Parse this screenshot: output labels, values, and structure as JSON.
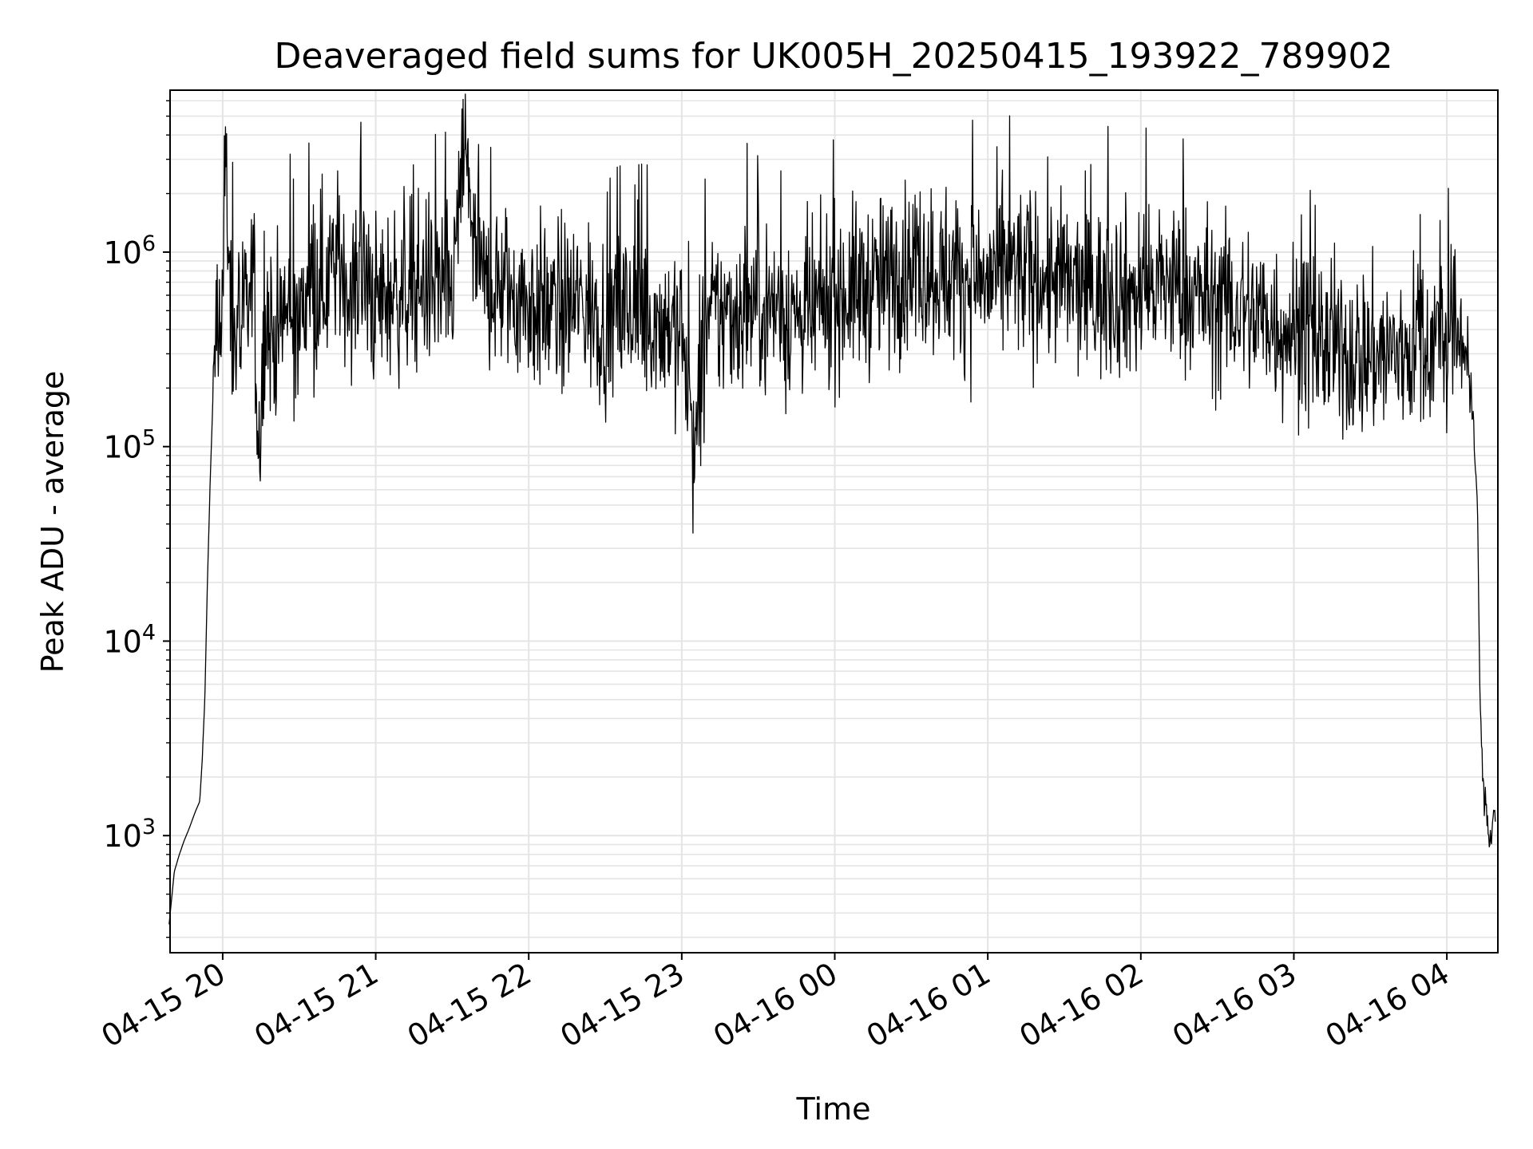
{
  "chart_data": {
    "type": "line",
    "title": "Deaveraged field sums for UK005H_20250415_193922_789902",
    "xlabel": "Time",
    "ylabel": "Peak ADU - average",
    "yscale": "log",
    "ylim": [
      250,
      6800000
    ],
    "xlim": [
      "2025-04-15 19:39:22",
      "2025-04-16 04:20:00"
    ],
    "grid": true,
    "line_color": "#000000",
    "x_ticks": [
      {
        "t": "2025-04-15 20:00",
        "label": "04-15 20"
      },
      {
        "t": "2025-04-15 21:00",
        "label": "04-15 21"
      },
      {
        "t": "2025-04-15 22:00",
        "label": "04-15 22"
      },
      {
        "t": "2025-04-15 23:00",
        "label": "04-15 23"
      },
      {
        "t": "2025-04-16 00:00",
        "label": "04-16 00"
      },
      {
        "t": "2025-04-16 01:00",
        "label": "04-16 01"
      },
      {
        "t": "2025-04-16 02:00",
        "label": "04-16 02"
      },
      {
        "t": "2025-04-16 03:00",
        "label": "04-16 03"
      },
      {
        "t": "2025-04-16 04:00",
        "label": "04-16 04"
      }
    ],
    "y_ticks": [
      {
        "value": 1000,
        "base": "10",
        "exp": "3"
      },
      {
        "value": 10000,
        "base": "10",
        "exp": "4"
      },
      {
        "value": 100000,
        "base": "10",
        "exp": "5"
      },
      {
        "value": 1000000,
        "base": "10",
        "exp": "6"
      }
    ],
    "series": [
      {
        "x": [
          "2025-04-15 19:39",
          "2025-04-15 19:41",
          "2025-04-15 19:43",
          "2025-04-15 19:45",
          "2025-04-15 19:47",
          "2025-04-15 19:49",
          "2025-04-15 19:51",
          "2025-04-15 19:52",
          "2025-04-15 19:53",
          "2025-04-15 19:54",
          "2025-04-15 19:55",
          "2025-04-15 19:56",
          "2025-04-15 19:57",
          "2025-04-15 19:58",
          "2025-04-15 20:00",
          "2025-04-15 20:01",
          "2025-04-15 20:03",
          "2025-04-15 20:06",
          "2025-04-15 20:10",
          "2025-04-15 20:12",
          "2025-04-15 20:14",
          "2025-04-15 20:17",
          "2025-04-15 20:20",
          "2025-04-15 20:25",
          "2025-04-15 20:30",
          "2025-04-15 20:35",
          "2025-04-15 20:40",
          "2025-04-15 20:45",
          "2025-04-15 20:50",
          "2025-04-15 20:55",
          "2025-04-15 21:00",
          "2025-04-15 21:10",
          "2025-04-15 21:20",
          "2025-04-15 21:30",
          "2025-04-15 21:35",
          "2025-04-15 21:40",
          "2025-04-15 21:50",
          "2025-04-15 22:00",
          "2025-04-15 22:10",
          "2025-04-15 22:20",
          "2025-04-15 22:30",
          "2025-04-15 22:40",
          "2025-04-15 22:50",
          "2025-04-15 23:00",
          "2025-04-15 23:05",
          "2025-04-15 23:10",
          "2025-04-15 23:20",
          "2025-04-15 23:30",
          "2025-04-15 23:40",
          "2025-04-15 23:50",
          "2025-04-16 00:00",
          "2025-04-16 00:10",
          "2025-04-16 00:20",
          "2025-04-16 00:30",
          "2025-04-16 00:40",
          "2025-04-16 00:50",
          "2025-04-16 01:00",
          "2025-04-16 01:10",
          "2025-04-16 01:20",
          "2025-04-16 01:30",
          "2025-04-16 01:40",
          "2025-04-16 01:50",
          "2025-04-16 02:00",
          "2025-04-16 02:10",
          "2025-04-16 02:20",
          "2025-04-16 02:30",
          "2025-04-16 02:40",
          "2025-04-16 02:50",
          "2025-04-16 03:00",
          "2025-04-16 03:10",
          "2025-04-16 03:20",
          "2025-04-16 03:30",
          "2025-04-16 03:40",
          "2025-04-16 03:50",
          "2025-04-16 04:00",
          "2025-04-16 04:05",
          "2025-04-16 04:08",
          "2025-04-16 04:10",
          "2025-04-16 04:12",
          "2025-04-16 04:13",
          "2025-04-16 04:14",
          "2025-04-16 04:15",
          "2025-04-16 04:16",
          "2025-04-16 04:17",
          "2025-04-16 04:18",
          "2025-04-16 04:19"
        ],
        "y": [
          350,
          650,
          800,
          950,
          1100,
          1300,
          1500,
          2500,
          5000,
          20000,
          60000,
          150000,
          350000,
          550000,
          600000,
          3400000,
          500000,
          350000,
          450000,
          1000000,
          80000,
          500000,
          350000,
          500000,
          400000,
          800000,
          700000,
          900000,
          650000,
          700000,
          550000,
          650000,
          700000,
          600000,
          3700000,
          700000,
          650000,
          550000,
          500000,
          550000,
          450000,
          500000,
          450000,
          400000,
          85000,
          450000,
          500000,
          550000,
          500000,
          450000,
          600000,
          650000,
          700000,
          900000,
          800000,
          750000,
          700000,
          800000,
          750000,
          700000,
          600000,
          650000,
          600000,
          700000,
          600000,
          550000,
          500000,
          450000,
          400000,
          350000,
          300000,
          300000,
          300000,
          350000,
          350000,
          400000,
          300000,
          150000,
          50000,
          5000,
          2000,
          1500,
          1200,
          900,
          1300,
          1400
        ],
        "noise": [
          0,
          0,
          0,
          0,
          0,
          0,
          0,
          0,
          0,
          0,
          0,
          0,
          0.3,
          0.35,
          0.35,
          0.35,
          0.4,
          0.45,
          0.45,
          0.45,
          0.45,
          0.45,
          0.45,
          0.45,
          0.45,
          0.45,
          0.45,
          0.45,
          0.45,
          0.45,
          0.45,
          0.45,
          0.45,
          0.45,
          0.45,
          0.45,
          0.45,
          0.45,
          0.45,
          0.45,
          0.45,
          0.45,
          0.45,
          0.45,
          0.45,
          0.45,
          0.45,
          0.45,
          0.45,
          0.45,
          0.45,
          0.45,
          0.45,
          0.45,
          0.45,
          0.45,
          0.45,
          0.45,
          0.45,
          0.45,
          0.45,
          0.45,
          0.45,
          0.45,
          0.45,
          0.45,
          0.45,
          0.45,
          0.45,
          0.45,
          0.45,
          0.45,
          0.45,
          0.45,
          0.45,
          0.4,
          0.3,
          0.1,
          0,
          0,
          0.1,
          0.1,
          0.1,
          0.1,
          0.1,
          0.1
        ]
      }
    ]
  }
}
